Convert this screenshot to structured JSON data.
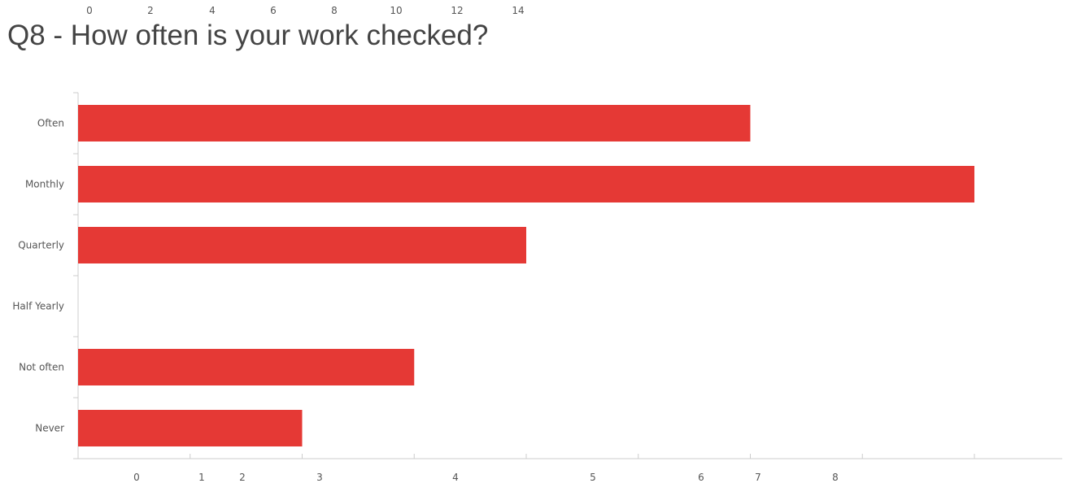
{
  "top_axis": {
    "ticks": [
      "0",
      "2",
      "4",
      "6",
      "8",
      "10",
      "12",
      "14"
    ]
  },
  "chart_data": {
    "type": "bar",
    "orientation": "horizontal",
    "title": "Q8 - How often is your work checked?",
    "categories": [
      "Often",
      "Monthly",
      "Quarterly",
      "Half Yearly",
      "Not often",
      "Never"
    ],
    "values": [
      6,
      8,
      4,
      0,
      3,
      2
    ],
    "xlim": [
      0,
      8
    ],
    "x_tick_labels": [
      "0",
      "1",
      "2",
      "3",
      "4",
      "5",
      "6",
      "7",
      "8"
    ],
    "bar_color": "#e53935",
    "axis_color": "#cccccc",
    "grid": false,
    "legend": "none"
  }
}
